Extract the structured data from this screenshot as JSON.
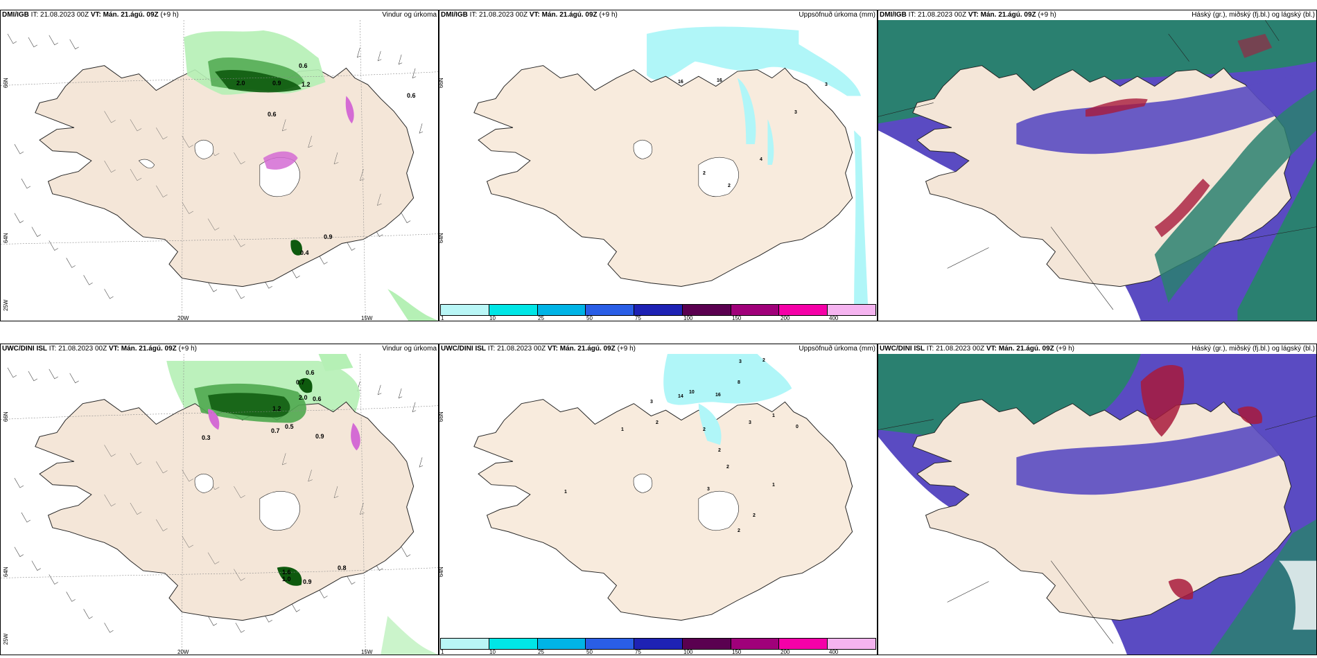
{
  "panels": [
    {
      "id": "r1c1",
      "model": "DMI/IGB",
      "it": "IT: 21.08.2023 00Z",
      "vt_label": "VT:",
      "vt": "Mán. 21.ágú. 09Z",
      "offset": "(+9 h)",
      "title": "Vindur og úrkoma",
      "axis": {
        "lon": [
          "20W",
          "15W"
        ],
        "lat": [
          "66N",
          "64N",
          "25W"
        ]
      },
      "values": [
        "2.0",
        "0.9",
        "1.2",
        "0.6",
        "0.6",
        "0.9",
        "0.6",
        "0.4"
      ]
    },
    {
      "id": "r1c2",
      "model": "DMI/IGB",
      "it": "IT: 21.08.2023 00Z",
      "vt_label": "VT:",
      "vt": "Mán. 21.ágú. 09Z",
      "offset": "(+9 h)",
      "title": "Uppsöfnuð úrkoma (mm)",
      "axis": {
        "lat": [
          "66N",
          "64N"
        ]
      },
      "values": [
        "16",
        "16",
        "3",
        "3",
        "4",
        "2",
        "2"
      ]
    },
    {
      "id": "r1c3",
      "model": "DMI/IGB",
      "it": "IT: 21.08.2023 00Z",
      "vt_label": "VT:",
      "vt": "Mán. 21.ágú. 09Z",
      "offset": "(+9 h)",
      "title": "Háský (gr.), miðský (fj.bl.) og lágský (bl.)"
    },
    {
      "id": "r2c1",
      "model": "UWC/DINI ISL",
      "it": "IT: 21.08.2023 00Z",
      "vt_label": "VT:",
      "vt": "Mán. 21.ágú. 09Z",
      "offset": "(+9 h)",
      "title": "Vindur og úrkoma",
      "axis": {
        "lon": [
          "20W",
          "15W"
        ],
        "lat": [
          "66N",
          "64N",
          "25W"
        ]
      },
      "values": [
        "0.6",
        "0.7",
        "2.0",
        "0.6",
        "1.2",
        "0.7",
        "0.5",
        "0.9",
        "0.3",
        "0.8",
        "1.6",
        "1.0",
        "0.9"
      ]
    },
    {
      "id": "r2c2",
      "model": "UWC/DINI ISL",
      "it": "IT: 21.08.2023 00Z",
      "vt_label": "VT:",
      "vt": "Mán. 21.ágú. 09Z",
      "offset": "(+9 h)",
      "title": "Uppsöfnuð úrkoma (mm)",
      "axis": {
        "lat": [
          "66N",
          "64N"
        ]
      },
      "values": [
        "3",
        "2",
        "14",
        "10",
        "16",
        "8",
        "3",
        "2",
        "1",
        "1",
        "2",
        "3",
        "0",
        "1",
        "2",
        "2",
        "3",
        "2",
        "1",
        "2"
      ]
    },
    {
      "id": "r2c3",
      "model": "UWC/DINI ISL",
      "it": "IT: 21.08.2023 00Z",
      "vt_label": "VT:",
      "vt": "Mán. 21.ágú. 09Z",
      "offset": "(+9 h)",
      "title": "Háský (gr.), miðský (fj.bl.) og lágský (bl.)"
    }
  ],
  "colorbar": {
    "ticks": [
      "1",
      "10",
      "25",
      "50",
      "75",
      "100",
      "150",
      "200",
      "400"
    ],
    "colors": [
      "#b9f6f6",
      "#00e6e6",
      "#00b4e6",
      "#2a5ee6",
      "#1e22b4",
      "#5a0050",
      "#a0007a",
      "#f500a8",
      "#f5b4f0"
    ]
  },
  "colors": {
    "land": "#f4e6d8",
    "precip_light": "#b5f0b5",
    "precip_mid": "#4fa84f",
    "precip_dark": "#0e5a0e",
    "accum": "#b0f6f8",
    "low_cloud": "#5a4bc2",
    "mid_cloud": "#2a8070",
    "high_cloud": "#a81a3c"
  }
}
